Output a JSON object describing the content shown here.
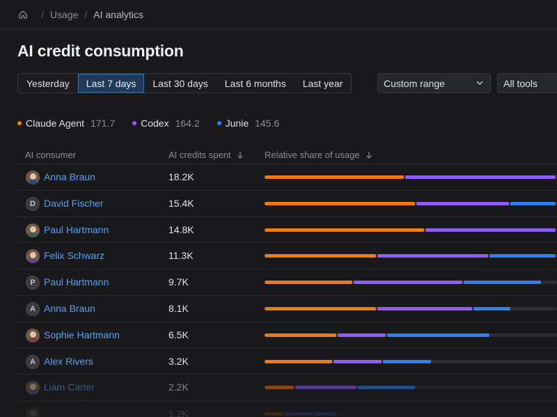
{
  "breadcrumb": {
    "items": [
      "Usage",
      "AI analytics"
    ],
    "separator": "/"
  },
  "page": {
    "title": "AI credit consumption"
  },
  "periods": {
    "items": [
      "Yesterday",
      "Last 7 days",
      "Last 30 days",
      "Last 6 months",
      "Last year"
    ],
    "active_index": 1
  },
  "filters": {
    "range_label": "Custom range",
    "tools_label": "All tools"
  },
  "legend": [
    {
      "name": "Claude Agent",
      "value": "171.7",
      "color": "#f07a18"
    },
    {
      "name": "Codex",
      "value": "164.2",
      "color": "#8f5cf6"
    },
    {
      "name": "Junie",
      "value": "145.6",
      "color": "#2f80ed"
    }
  ],
  "table": {
    "columns": [
      "AI consumer",
      "AI credits spent",
      "Relative share of usage"
    ],
    "rows": [
      {
        "name": "Anna Braun",
        "credits": "18.2K",
        "avatar": "photo",
        "shares": [
          0.48,
          0.52,
          0
        ]
      },
      {
        "name": "David Fischer",
        "credits": "15.4K",
        "avatar": "D",
        "shares": [
          0.52,
          0.32,
          0.16
        ]
      },
      {
        "name": "Paul Hartmann",
        "credits": "14.8K",
        "avatar": "photo",
        "shares": [
          0.55,
          0.45,
          0
        ]
      },
      {
        "name": "Felix Schwarz",
        "credits": "11.3K",
        "avatar": "photo",
        "shares": [
          0.385,
          0.385,
          0.23
        ]
      },
      {
        "name": "Paul Hartmann",
        "credits": "9.7K",
        "avatar": "P",
        "shares": [
          0.305,
          0.375,
          0.27
        ]
      },
      {
        "name": "Anna Braun",
        "credits": "8.1K",
        "avatar": "A",
        "shares": [
          0.385,
          0.33,
          0.13
        ]
      },
      {
        "name": "Sophie Hartmann",
        "credits": "6.5K",
        "avatar": "photo",
        "shares": [
          0.25,
          0.17,
          0.355
        ]
      },
      {
        "name": "Alex Rivers",
        "credits": "3.2K",
        "avatar": "A",
        "shares": [
          0.235,
          0.17,
          0.17
        ]
      },
      {
        "name": "Liam Carter",
        "credits": "2.2K",
        "avatar": "photo",
        "shares": [
          0.105,
          0.215,
          0.2
        ]
      },
      {
        "name": "",
        "credits": "1.2K",
        "avatar": "photo",
        "shares": [
          0.07,
          0.1,
          0.08
        ]
      }
    ]
  },
  "icons": {
    "home": "home-icon",
    "dropdown": "chevron-down-icon",
    "sort": "arrow-down-icon"
  }
}
